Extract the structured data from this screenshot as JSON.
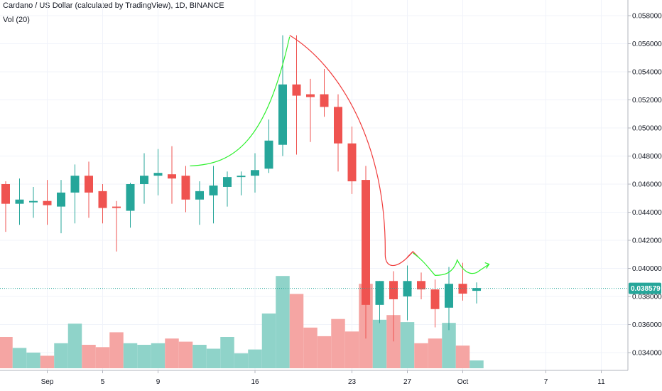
{
  "header": {
    "title": "Cardano / US Dollar (calculated by TradingView), 1D, BINANCE",
    "indicator": "Vol (20)"
  },
  "price_tag": "0.038579",
  "colors": {
    "up": "#26a69a",
    "down": "#ef5350",
    "up_vol": "#8fd3c9",
    "down_vol": "#f5a5a3",
    "curve_up": "#2ef02e",
    "curve_down": "#f03c3c"
  },
  "chart_data": {
    "type": "candlestick",
    "ylim": [
      0.0325,
      0.059
    ],
    "y_ticks": [
      "0.058000",
      "0.056000",
      "0.054000",
      "0.052000",
      "0.050000",
      "0.048000",
      "0.046000",
      "0.044000",
      "0.042000",
      "0.040000",
      "0.038000",
      "0.036000",
      "0.034000"
    ],
    "x_ticks": [
      "Sep",
      "5",
      "9",
      "16",
      "23",
      "27",
      "Oct",
      "7",
      "11"
    ],
    "last_price": 0.038579,
    "candles": [
      {
        "o": 0.046,
        "h": 0.0462,
        "l": 0.0426,
        "c": 0.0446,
        "v": 4.0
      },
      {
        "o": 0.0446,
        "h": 0.0464,
        "l": 0.0431,
        "c": 0.0449,
        "v": 2.6
      },
      {
        "o": 0.0447,
        "h": 0.0458,
        "l": 0.0436,
        "c": 0.0448,
        "v": 2.0
      },
      {
        "o": 0.0448,
        "h": 0.0463,
        "l": 0.0431,
        "c": 0.0445,
        "v": 1.6
      },
      {
        "o": 0.0444,
        "h": 0.0463,
        "l": 0.0425,
        "c": 0.0454,
        "v": 3.2
      },
      {
        "o": 0.0454,
        "h": 0.0474,
        "l": 0.0432,
        "c": 0.0466,
        "v": 5.7
      },
      {
        "o": 0.0466,
        "h": 0.0476,
        "l": 0.0436,
        "c": 0.0454,
        "v": 3.0
      },
      {
        "o": 0.0455,
        "h": 0.046,
        "l": 0.0432,
        "c": 0.0443,
        "v": 2.7
      },
      {
        "o": 0.0444,
        "h": 0.0448,
        "l": 0.0412,
        "c": 0.0443,
        "v": 4.6
      },
      {
        "o": 0.0441,
        "h": 0.0461,
        "l": 0.0429,
        "c": 0.046,
        "v": 3.2
      },
      {
        "o": 0.046,
        "h": 0.0482,
        "l": 0.0446,
        "c": 0.0466,
        "v": 3.0
      },
      {
        "o": 0.0466,
        "h": 0.0485,
        "l": 0.0452,
        "c": 0.0468,
        "v": 3.2
      },
      {
        "o": 0.0467,
        "h": 0.0487,
        "l": 0.0446,
        "c": 0.0464,
        "v": 3.8
      },
      {
        "o": 0.0466,
        "h": 0.0473,
        "l": 0.044,
        "c": 0.0449,
        "v": 3.4
      },
      {
        "o": 0.0449,
        "h": 0.0462,
        "l": 0.0431,
        "c": 0.0455,
        "v": 3.0
      },
      {
        "o": 0.0452,
        "h": 0.0473,
        "l": 0.0432,
        "c": 0.0459,
        "v": 2.5
      },
      {
        "o": 0.0458,
        "h": 0.0469,
        "l": 0.0444,
        "c": 0.0465,
        "v": 4.0
      },
      {
        "o": 0.0465,
        "h": 0.0469,
        "l": 0.0452,
        "c": 0.0466,
        "v": 1.9
      },
      {
        "o": 0.0466,
        "h": 0.0482,
        "l": 0.0454,
        "c": 0.047,
        "v": 2.4
      },
      {
        "o": 0.0471,
        "h": 0.0506,
        "l": 0.0468,
        "c": 0.0491,
        "v": 7.0
      },
      {
        "o": 0.0488,
        "h": 0.0566,
        "l": 0.048,
        "c": 0.0531,
        "v": 11.8
      },
      {
        "o": 0.0531,
        "h": 0.0566,
        "l": 0.0481,
        "c": 0.0523,
        "v": 9.5
      },
      {
        "o": 0.0524,
        "h": 0.0535,
        "l": 0.049,
        "c": 0.0522,
        "v": 5.2
      },
      {
        "o": 0.0524,
        "h": 0.0542,
        "l": 0.0508,
        "c": 0.0515,
        "v": 4.1
      },
      {
        "o": 0.0515,
        "h": 0.0524,
        "l": 0.0469,
        "c": 0.0489,
        "v": 6.3
      },
      {
        "o": 0.0489,
        "h": 0.0501,
        "l": 0.0453,
        "c": 0.0462,
        "v": 4.7
      },
      {
        "o": 0.0463,
        "h": 0.0473,
        "l": 0.035,
        "c": 0.0374,
        "v": 10.8
      },
      {
        "o": 0.0374,
        "h": 0.0391,
        "l": 0.0361,
        "c": 0.0391,
        "v": 6.2
      },
      {
        "o": 0.0391,
        "h": 0.0398,
        "l": 0.0348,
        "c": 0.0378,
        "v": 6.8
      },
      {
        "o": 0.038,
        "h": 0.0402,
        "l": 0.0363,
        "c": 0.0391,
        "v": 5.9
      },
      {
        "o": 0.0391,
        "h": 0.0397,
        "l": 0.0378,
        "c": 0.0385,
        "v": 3.2
      },
      {
        "o": 0.0385,
        "h": 0.0392,
        "l": 0.0358,
        "c": 0.0371,
        "v": 3.8
      },
      {
        "o": 0.0372,
        "h": 0.0401,
        "l": 0.0356,
        "c": 0.0389,
        "v": 5.8
      },
      {
        "o": 0.0389,
        "h": 0.0404,
        "l": 0.0377,
        "c": 0.0382,
        "v": 2.9
      },
      {
        "o": 0.0384,
        "h": 0.039,
        "l": 0.0375,
        "c": 0.0386,
        "v": 1.0
      }
    ]
  }
}
